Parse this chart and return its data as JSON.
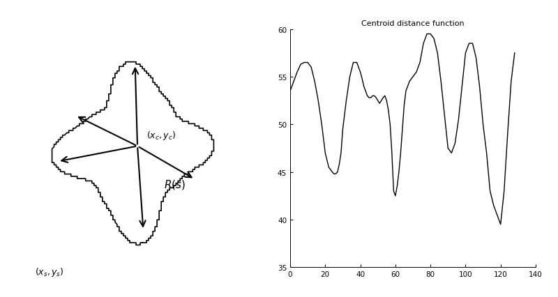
{
  "title": "Centroid distance function",
  "title_fontsize": 8,
  "xlim": [
    0,
    140
  ],
  "ylim": [
    35,
    60
  ],
  "xticks": [
    0,
    20,
    40,
    60,
    80,
    100,
    120,
    140
  ],
  "yticks": [
    35,
    40,
    45,
    50,
    55,
    60
  ],
  "line_color": "#000000",
  "line_width": 1.0,
  "bg_color": "#ffffff",
  "signal_x": [
    0,
    2,
    4,
    6,
    8,
    10,
    12,
    14,
    16,
    18,
    20,
    22,
    24,
    25,
    26,
    27,
    28,
    29,
    30,
    32,
    34,
    36,
    38,
    40,
    41,
    42,
    43,
    44,
    45,
    46,
    47,
    48,
    49,
    50,
    51,
    52,
    53,
    54,
    55,
    56,
    57,
    58,
    59,
    60,
    61,
    62,
    63,
    64,
    65,
    66,
    68,
    70,
    72,
    74,
    76,
    78,
    80,
    82,
    84,
    86,
    88,
    90,
    92,
    94,
    96,
    98,
    100,
    102,
    104,
    106,
    108,
    110,
    112,
    114,
    116,
    118,
    120,
    122,
    124,
    126,
    128
  ],
  "signal_y": [
    53.5,
    54.5,
    55.5,
    56.3,
    56.5,
    56.5,
    56.0,
    54.5,
    52.5,
    50.0,
    47.0,
    45.5,
    45.0,
    44.8,
    44.8,
    45.0,
    45.8,
    47.0,
    49.5,
    52.5,
    55.0,
    56.5,
    56.5,
    55.5,
    54.8,
    54.0,
    53.5,
    53.0,
    52.8,
    52.8,
    53.0,
    53.0,
    52.8,
    52.5,
    52.2,
    52.5,
    52.8,
    53.0,
    52.5,
    51.5,
    50.0,
    47.0,
    43.0,
    42.5,
    43.5,
    45.0,
    47.0,
    49.5,
    52.0,
    53.5,
    54.5,
    55.0,
    55.5,
    56.5,
    58.5,
    59.5,
    59.5,
    59.0,
    57.5,
    54.5,
    51.0,
    47.5,
    47.0,
    48.0,
    50.5,
    54.0,
    57.5,
    58.5,
    58.5,
    57.0,
    54.0,
    50.0,
    47.0,
    43.0,
    41.5,
    40.5,
    39.5,
    43.0,
    49.0,
    54.5,
    57.5
  ]
}
